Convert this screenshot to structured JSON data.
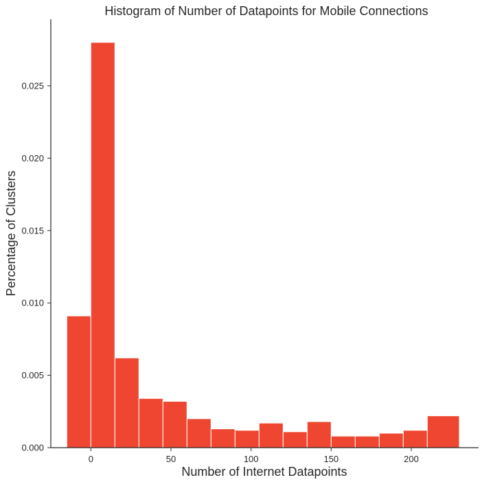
{
  "chart_data": {
    "type": "bar",
    "title": "Histogram of Number of Datapoints for Mobile Connections",
    "xlabel": "Number of Internet Datapoints",
    "ylabel": "Percentage of Clusters",
    "bar_color": "#ee4631",
    "xlim": [
      -25,
      242
    ],
    "ylim": [
      0,
      0.0296
    ],
    "xticks": [
      0,
      50,
      100,
      150,
      200
    ],
    "xtick_labels": [
      "0",
      "50",
      "100",
      "150",
      "200"
    ],
    "yticks": [
      0,
      0.005,
      0.01,
      0.015,
      0.02,
      0.025
    ],
    "ytick_labels": [
      "0.000",
      "0.005",
      "0.010",
      "0.015",
      "0.020",
      "0.025"
    ],
    "bins": [
      {
        "x0": -15,
        "x1": 0,
        "value": 0.0091
      },
      {
        "x0": 0,
        "x1": 15,
        "value": 0.028
      },
      {
        "x0": 15,
        "x1": 30,
        "value": 0.0062
      },
      {
        "x0": 30,
        "x1": 45,
        "value": 0.0034
      },
      {
        "x0": 45,
        "x1": 60,
        "value": 0.0032
      },
      {
        "x0": 60,
        "x1": 75,
        "value": 0.002
      },
      {
        "x0": 75,
        "x1": 90,
        "value": 0.0013
      },
      {
        "x0": 90,
        "x1": 105,
        "value": 0.0012
      },
      {
        "x0": 105,
        "x1": 120,
        "value": 0.0017
      },
      {
        "x0": 120,
        "x1": 135,
        "value": 0.0011
      },
      {
        "x0": 135,
        "x1": 150,
        "value": 0.0018
      },
      {
        "x0": 150,
        "x1": 165,
        "value": 0.0008
      },
      {
        "x0": 165,
        "x1": 180,
        "value": 0.0008
      },
      {
        "x0": 180,
        "x1": 195,
        "value": 0.001
      },
      {
        "x0": 195,
        "x1": 210,
        "value": 0.0012
      },
      {
        "x0": 210,
        "x1": 230,
        "value": 0.0022
      }
    ]
  }
}
